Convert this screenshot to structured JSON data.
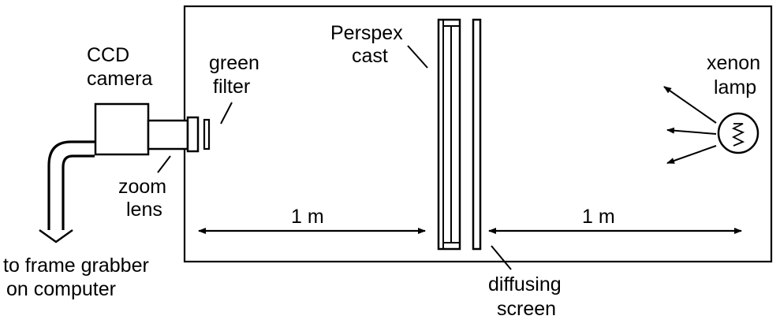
{
  "diagram": {
    "labels": {
      "ccd_line1": "CCD",
      "ccd_line2": "camera",
      "filter_line1": "green",
      "filter_line2": "filter",
      "perspex_line1": "Perspex",
      "perspex_line2": "cast",
      "xenon_line1": "xenon",
      "xenon_line2": "lamp",
      "zoom_line1": "zoom",
      "zoom_line2": "lens",
      "dist_left": "1 m",
      "dist_right": "1 m",
      "grabber_line1": "to frame grabber",
      "grabber_line2": "on computer",
      "diffusing_line1": "diffusing",
      "diffusing_line2": "screen"
    },
    "icons": {
      "arrowhead": "arrowhead-icon",
      "lamp": "xenon-lamp-icon"
    }
  }
}
